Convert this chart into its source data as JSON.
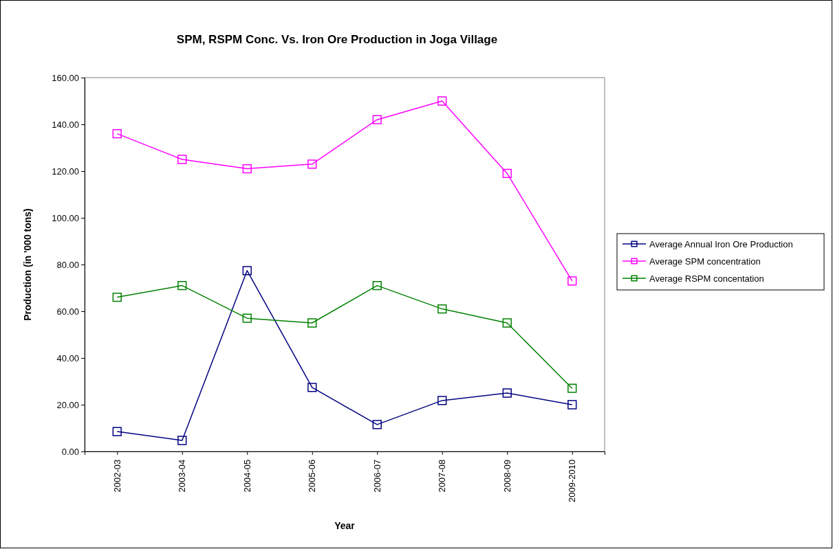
{
  "chart_data": {
    "type": "line",
    "title": "SPM, RSPM Conc. Vs. Iron Ore Production in Joga Village",
    "xlabel": "Year",
    "ylabel": "Production (in '000 tons)",
    "categories": [
      "2002-03",
      "2003-04",
      "2004-05",
      "2005-06",
      "2006-07",
      "2007-08",
      "2008-09",
      "2009-2010"
    ],
    "series": [
      {
        "name": "Average Annual Iron Ore Production",
        "color": "#000080",
        "values": [
          8.5,
          4.7,
          77.4,
          27.4,
          11.5,
          21.8,
          25,
          20
        ]
      },
      {
        "name": "Average SPM concentration",
        "color": "#ff00ff",
        "values": [
          136,
          125,
          121,
          123,
          142,
          150,
          119,
          73
        ]
      },
      {
        "name": "Average RSPM concentation",
        "color": "#008000",
        "values": [
          66,
          71,
          57,
          55,
          71,
          61,
          55,
          27
        ]
      }
    ],
    "ylim": [
      0,
      160
    ],
    "yticks": [
      {
        "value": 0,
        "label": "0.00"
      },
      {
        "value": 20,
        "label": "20.00"
      },
      {
        "value": 40,
        "label": "40.00"
      },
      {
        "value": 60,
        "label": "60.00"
      },
      {
        "value": 80,
        "label": "80.00"
      },
      {
        "value": 100,
        "label": "100.00"
      },
      {
        "value": 120,
        "label": "120.00"
      },
      {
        "value": 140,
        "label": "140.00"
      },
      {
        "value": 160,
        "label": "160.00"
      }
    ],
    "grid": false,
    "legend": "right",
    "marker": "square",
    "line_style": "solid"
  }
}
